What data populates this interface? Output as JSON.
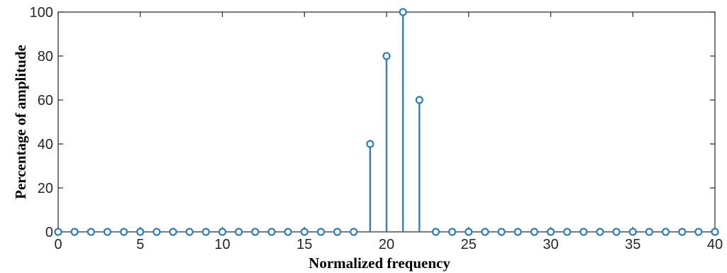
{
  "chart_data": {
    "type": "stem",
    "title": "",
    "xlabel": "Normalized frequency",
    "ylabel": "Percentage of amplitude",
    "xlim": [
      0,
      40
    ],
    "ylim": [
      0,
      100
    ],
    "xticks": [
      0,
      5,
      10,
      15,
      20,
      25,
      30,
      35,
      40
    ],
    "yticks": [
      0,
      20,
      40,
      60,
      80,
      100
    ],
    "grid": false,
    "color": "#2e7fb8",
    "x": [
      0,
      1,
      2,
      3,
      4,
      5,
      6,
      7,
      8,
      9,
      10,
      11,
      12,
      13,
      14,
      15,
      16,
      17,
      18,
      19,
      20,
      21,
      22,
      23,
      24,
      25,
      26,
      27,
      28,
      29,
      30,
      31,
      32,
      33,
      34,
      35,
      36,
      37,
      38,
      39,
      40
    ],
    "y": [
      0,
      0,
      0,
      0,
      0,
      0,
      0,
      0,
      0,
      0,
      0,
      0,
      0,
      0,
      0,
      0,
      0,
      0,
      0,
      40,
      80,
      100,
      60,
      0,
      0,
      0,
      0,
      0,
      0,
      0,
      0,
      0,
      0,
      0,
      0,
      0,
      0,
      0,
      0,
      0,
      0
    ]
  }
}
